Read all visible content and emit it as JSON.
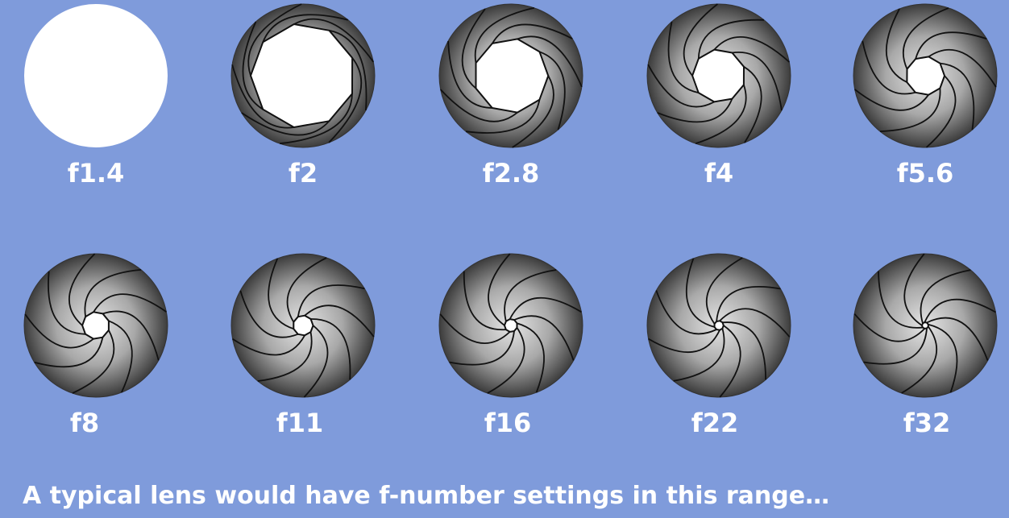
{
  "apertures": [
    {
      "label": "f1.4",
      "opening": 1.0
    },
    {
      "label": "f2",
      "opening": 0.73
    },
    {
      "label": "f2.8",
      "opening": 0.52
    },
    {
      "label": "f4",
      "opening": 0.37
    },
    {
      "label": "f5.6",
      "opening": 0.27
    },
    {
      "label": "f8",
      "opening": 0.19
    },
    {
      "label": "f11",
      "opening": 0.14
    },
    {
      "label": "f16",
      "opening": 0.09
    },
    {
      "label": "f22",
      "opening": 0.065
    },
    {
      "label": "f32",
      "opening": 0.045
    }
  ],
  "caption": "A typical lens would have f-number settings in this range…",
  "colors": {
    "background": "#7f9bdb",
    "opening": "#ffffff",
    "blade_dark": "#3a3a3a",
    "blade_light": "#d8d8d8",
    "blade_line": "#111111",
    "text": "#ffffff"
  }
}
